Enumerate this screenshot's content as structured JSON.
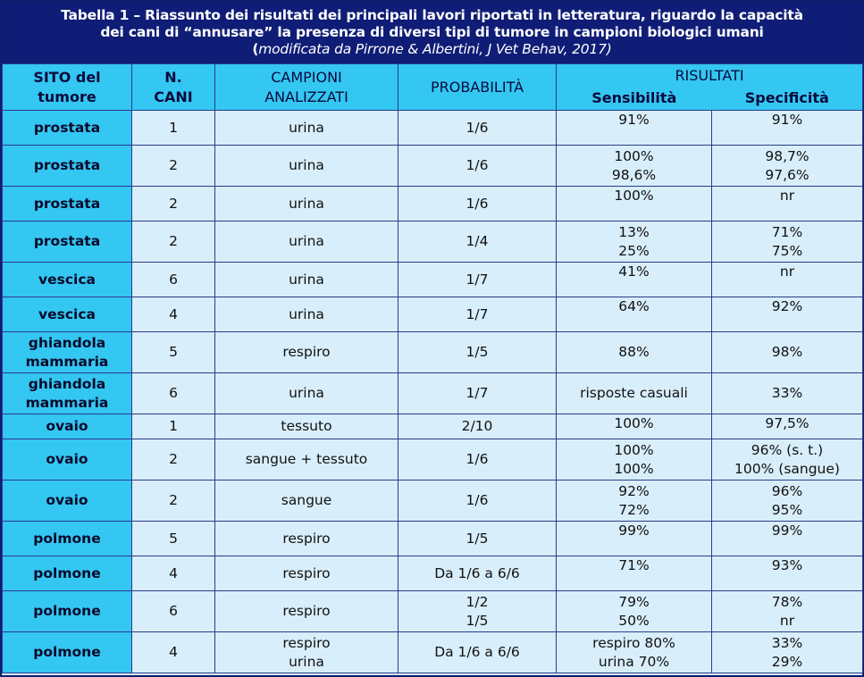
{
  "caption": {
    "line1": "Tabella 1 – Riassunto dei risultati dei principali lavori riportati in letteratura, riguardo la capacità",
    "line2": "dei cani di “annusare” la presenza di diversi tipi di tumore in campioni biologici umani",
    "line3_open": "(",
    "line3": "modificata da Pirrone & Albertini, J Vet Behav, 2017)"
  },
  "headers": {
    "site": [
      "SITO del",
      "tumore"
    ],
    "dogs": [
      "N.",
      "CANI"
    ],
    "samples": [
      "CAMPIONI",
      "ANALIZZATI"
    ],
    "probability": "PROBABILITÀ",
    "results": "RISULTATI",
    "sensitivity": "Sensibilità",
    "specificity": "Specificità"
  },
  "rows": [
    {
      "site": [
        "prostata"
      ],
      "dogs": "1",
      "samples": [
        "urina"
      ],
      "prob": [
        "1/6"
      ],
      "sens": [
        "91%"
      ],
      "spec": [
        "91%"
      ],
      "h": 39
    },
    {
      "site": [
        "prostata"
      ],
      "dogs": "2",
      "samples": [
        "urina"
      ],
      "prob": [
        "1/6"
      ],
      "sens": [
        "100%",
        "98,6%"
      ],
      "spec": [
        "98,7%",
        "97,6%"
      ],
      "h": 46
    },
    {
      "site": [
        "prostata"
      ],
      "dogs": "2",
      "samples": [
        "urina"
      ],
      "prob": [
        "1/6"
      ],
      "sens": [
        "100%"
      ],
      "spec": [
        "nr"
      ],
      "h": 39
    },
    {
      "site": [
        "prostata"
      ],
      "dogs": "2",
      "samples": [
        "urina"
      ],
      "prob": [
        "1/4"
      ],
      "sens": [
        "13%",
        "25%"
      ],
      "spec": [
        "71%",
        "75%"
      ],
      "h": 46
    },
    {
      "site": [
        "vescica"
      ],
      "dogs": "6",
      "samples": [
        "urina"
      ],
      "prob": [
        "1/7"
      ],
      "sens": [
        "41%"
      ],
      "spec": [
        "nr"
      ],
      "h": 39
    },
    {
      "site": [
        "vescica"
      ],
      "dogs": "4",
      "samples": [
        "urina"
      ],
      "prob": [
        "1/7"
      ],
      "sens": [
        "64%"
      ],
      "spec": [
        "92%"
      ],
      "h": 39
    },
    {
      "site": [
        "ghiandola",
        "mammaria"
      ],
      "dogs": "5",
      "samples": [
        "respiro"
      ],
      "prob": [
        "1/5"
      ],
      "sens": [
        "88%"
      ],
      "spec": [
        "98%"
      ],
      "h": 46
    },
    {
      "site": [
        "ghiandola",
        "mammaria"
      ],
      "dogs": "6",
      "samples": [
        "urina"
      ],
      "prob": [
        "1/7"
      ],
      "sens": [
        "risposte casuali"
      ],
      "spec": [
        "33%"
      ],
      "h": 46
    },
    {
      "site": [
        "ovaio"
      ],
      "dogs": "1",
      "samples": [
        "tessuto"
      ],
      "prob": [
        "2/10"
      ],
      "sens": [
        "100%"
      ],
      "spec": [
        "97,5%"
      ],
      "h": 28
    },
    {
      "site": [
        "ovaio"
      ],
      "dogs": "2",
      "samples": [
        "sangue + tessuto"
      ],
      "prob": [
        "1/6"
      ],
      "sens": [
        "100%",
        "100%"
      ],
      "spec": [
        "96% (s. t.)",
        "100% (sangue)"
      ],
      "h": 46
    },
    {
      "site": [
        "ovaio"
      ],
      "dogs": "2",
      "samples": [
        "sangue"
      ],
      "prob": [
        "1/6"
      ],
      "sens": [
        "92%",
        "72%"
      ],
      "spec": [
        "96%",
        "95%"
      ],
      "h": 46
    },
    {
      "site": [
        "polmone"
      ],
      "dogs": "5",
      "samples": [
        "respiro"
      ],
      "prob": [
        "1/5"
      ],
      "sens": [
        "99%"
      ],
      "spec": [
        "99%"
      ],
      "h": 39
    },
    {
      "site": [
        "polmone"
      ],
      "dogs": "4",
      "samples": [
        "respiro"
      ],
      "prob": [
        "Da 1/6 a 6/6"
      ],
      "sens": [
        "71%"
      ],
      "spec": [
        "93%"
      ],
      "h": 39
    },
    {
      "site": [
        "polmone"
      ],
      "dogs": "6",
      "samples": [
        "respiro"
      ],
      "prob": [
        "1/2",
        "1/5"
      ],
      "sens": [
        "79%",
        "50%"
      ],
      "spec": [
        "78%",
        "nr"
      ],
      "h": 46
    },
    {
      "site": [
        "polmone"
      ],
      "dogs": "4",
      "samples": [
        "respiro",
        "urina"
      ],
      "prob": [
        "Da 1/6 a 6/6"
      ],
      "sens": [
        "respiro 80%",
        "urina 70%"
      ],
      "spec": [
        "33%",
        "29%"
      ],
      "h": 46
    }
  ]
}
